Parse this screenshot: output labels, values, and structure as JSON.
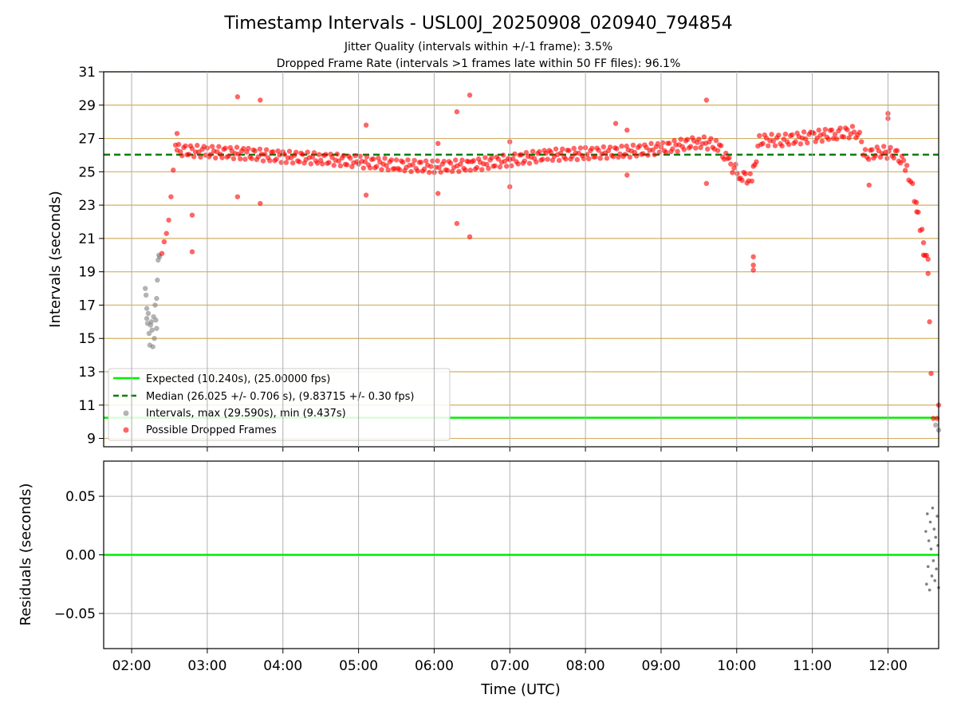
{
  "figure": {
    "title": "Timestamp Intervals - USL00J_20250908_020940_794854",
    "subtitle_1": "Jitter Quality (intervals within +/-1 frame): 3.5%",
    "subtitle_2": "Dropped Frame Rate (intervals >1 frames late within 50 FF files): 96.1%"
  },
  "colors": {
    "expected": "#00ee00",
    "median": "#008000",
    "intervals": "#808080",
    "dropped": "#ff0000",
    "hgrid_top": "#d2b060",
    "grid": "#b0b0b0"
  },
  "chart_data": [
    {
      "type": "scatter",
      "xlabel": "",
      "ylabel": "Intervals (seconds)",
      "x_ticks": [
        "02:00",
        "03:00",
        "04:00",
        "05:00",
        "06:00",
        "07:00",
        "08:00",
        "09:00",
        "10:00",
        "11:00",
        "12:00"
      ],
      "xlim_hours": [
        1.63,
        12.67
      ],
      "ylim": [
        8.5,
        31
      ],
      "y_ticks": [
        "9",
        "11",
        "13",
        "15",
        "17",
        "19",
        "21",
        "23",
        "25",
        "27",
        "29",
        "31"
      ],
      "grid": "horizontal",
      "legend_position": "lower-left",
      "expected_value": 10.24,
      "median_value": 26.025,
      "legend": [
        "Expected (10.240s), (25.00000 fps)",
        "Median (26.025 +/- 0.706 s), (9.83715 +/- 0.30 fps)",
        "Intervals, max (29.590s), min (9.437s)",
        "Possible Dropped Frames"
      ],
      "series": [
        {
          "name": "Intervals, max (29.590s), min (9.437s)",
          "points": [
            [
              2.18,
              18.0
            ],
            [
              2.19,
              17.6
            ],
            [
              2.2,
              16.8
            ],
            [
              2.2,
              16.2
            ],
            [
              2.21,
              15.9
            ],
            [
              2.22,
              16.5
            ],
            [
              2.23,
              15.3
            ],
            [
              2.24,
              14.6
            ],
            [
              2.25,
              15.8
            ],
            [
              2.26,
              16.0
            ],
            [
              2.27,
              15.5
            ],
            [
              2.28,
              14.5
            ],
            [
              2.29,
              16.3
            ],
            [
              2.3,
              15.0
            ],
            [
              2.31,
              17.0
            ],
            [
              2.32,
              16.1
            ],
            [
              2.33,
              15.6
            ],
            [
              2.33,
              17.4
            ],
            [
              2.34,
              18.5
            ],
            [
              2.35,
              19.7
            ],
            [
              2.36,
              20.0
            ],
            [
              2.37,
              19.9
            ],
            [
              12.63,
              9.8
            ],
            [
              12.72,
              9.5
            ]
          ]
        },
        {
          "name": "Possible Dropped Frames",
          "points": [
            [
              2.4,
              20.1
            ],
            [
              2.43,
              20.8
            ],
            [
              2.46,
              21.3
            ],
            [
              2.49,
              22.1
            ],
            [
              2.52,
              23.5
            ],
            [
              2.55,
              25.1
            ],
            [
              2.58,
              26.6
            ],
            [
              2.6,
              27.3
            ],
            [
              2.8,
              22.4
            ],
            [
              2.8,
              20.2
            ],
            [
              3.4,
              29.5
            ],
            [
              3.4,
              23.5
            ],
            [
              3.7,
              29.3
            ],
            [
              3.7,
              23.1
            ],
            [
              5.1,
              27.8
            ],
            [
              5.1,
              23.6
            ],
            [
              6.05,
              26.7
            ],
            [
              6.05,
              23.7
            ],
            [
              6.3,
              28.6
            ],
            [
              6.3,
              21.9
            ],
            [
              6.47,
              29.6
            ],
            [
              6.47,
              21.1
            ],
            [
              7.0,
              26.8
            ],
            [
              7.0,
              24.1
            ],
            [
              8.4,
              27.9
            ],
            [
              8.55,
              27.5
            ],
            [
              8.55,
              24.8
            ],
            [
              9.6,
              29.3
            ],
            [
              9.6,
              24.3
            ],
            [
              10.22,
              19.9
            ],
            [
              10.22,
              19.4
            ],
            [
              10.22,
              19.1
            ],
            [
              11.75,
              24.2
            ],
            [
              12.0,
              28.5
            ],
            [
              12.0,
              28.2
            ],
            [
              12.38,
              22.6
            ],
            [
              12.47,
              20.0
            ],
            [
              12.53,
              18.9
            ],
            [
              12.55,
              16.0
            ],
            [
              12.57,
              12.9
            ],
            [
              12.6,
              10.2
            ],
            [
              12.65,
              10.2
            ],
            [
              12.7,
              11.0
            ]
          ],
          "trend": [
            [
              2.6,
              26.3
            ],
            [
              3.0,
              26.2
            ],
            [
              3.5,
              26.1
            ],
            [
              4.0,
              25.9
            ],
            [
              4.5,
              25.8
            ],
            [
              5.0,
              25.6
            ],
            [
              5.5,
              25.4
            ],
            [
              6.0,
              25.3
            ],
            [
              6.5,
              25.4
            ],
            [
              7.0,
              25.7
            ],
            [
              7.5,
              26.0
            ],
            [
              8.0,
              26.1
            ],
            [
              8.5,
              26.2
            ],
            [
              9.0,
              26.4
            ],
            [
              9.5,
              26.8
            ],
            [
              9.75,
              26.6
            ],
            [
              9.9,
              25.5
            ],
            [
              10.05,
              24.8
            ],
            [
              10.2,
              24.5
            ],
            [
              10.3,
              26.9
            ],
            [
              10.6,
              26.9
            ],
            [
              11.0,
              27.1
            ],
            [
              11.3,
              27.3
            ],
            [
              11.6,
              27.4
            ],
            [
              11.7,
              26.0
            ],
            [
              11.9,
              26.2
            ],
            [
              12.1,
              26.1
            ],
            [
              12.25,
              25.3
            ],
            [
              12.35,
              23.5
            ],
            [
              12.45,
              21.2
            ],
            [
              12.55,
              19.0
            ]
          ]
        }
      ]
    },
    {
      "type": "scatter",
      "xlabel": "Time (UTC)",
      "ylabel": "Residuals (seconds)",
      "x_ticks": [
        "02:00",
        "03:00",
        "04:00",
        "05:00",
        "06:00",
        "07:00",
        "08:00",
        "09:00",
        "10:00",
        "11:00",
        "12:00"
      ],
      "xlim_hours": [
        1.63,
        12.67
      ],
      "ylim": [
        -0.08,
        0.08
      ],
      "y_ticks": [
        "−0.05",
        "0.00",
        "0.05"
      ],
      "grid": "both",
      "series": [
        {
          "name": "",
          "points": [
            [
              12.5,
              0.02
            ],
            [
              12.51,
              -0.025
            ],
            [
              12.52,
              0.035
            ],
            [
              12.53,
              -0.01
            ],
            [
              12.54,
              0.012
            ],
            [
              12.55,
              -0.03
            ],
            [
              12.56,
              0.028
            ],
            [
              12.57,
              0.005
            ],
            [
              12.58,
              -0.018
            ],
            [
              12.59,
              0.04
            ],
            [
              12.6,
              -0.005
            ],
            [
              12.61,
              0.022
            ],
            [
              12.62,
              -0.022
            ],
            [
              12.63,
              0.015
            ],
            [
              12.64,
              -0.012
            ],
            [
              12.65,
              0.033
            ],
            [
              12.66,
              0.008
            ],
            [
              12.67,
              -0.028
            ]
          ]
        }
      ]
    }
  ]
}
